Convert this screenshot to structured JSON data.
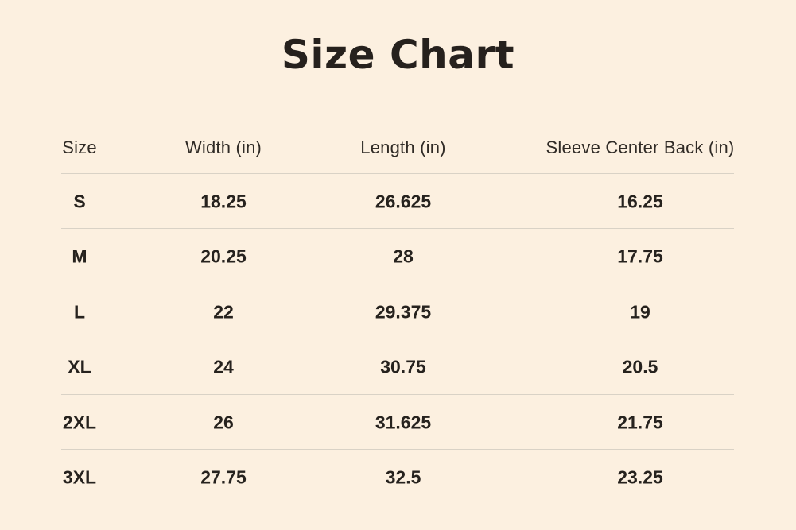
{
  "colors": {
    "background": "#fcf0e0",
    "text": "#26221e",
    "divider": "#d9d2c6"
  },
  "chart_data": {
    "type": "table",
    "title": "Size Chart",
    "columns": [
      "Size",
      "Width (in)",
      "Length (in)",
      "Sleeve Center Back (in)"
    ],
    "rows": [
      [
        "S",
        18.25,
        26.625,
        16.25
      ],
      [
        "M",
        20.25,
        28,
        17.75
      ],
      [
        "L",
        22,
        29.375,
        19
      ],
      [
        "XL",
        24,
        30.75,
        20.5
      ],
      [
        "2XL",
        26,
        31.625,
        21.75
      ],
      [
        "3XL",
        27.75,
        32.5,
        23.25
      ]
    ],
    "units": "in"
  }
}
